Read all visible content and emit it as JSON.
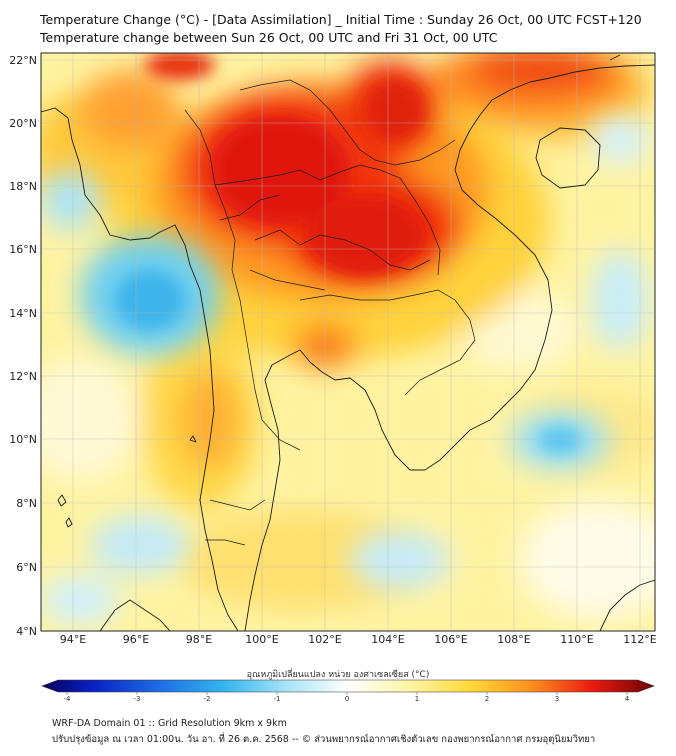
{
  "title": {
    "line1": "Temperature Change (°C) - [Data Assimilation] _ Initial Time : Sunday 26 Oct, 00 UTC FCST+120",
    "line2": "Temperature change between Sun 26 Oct, 00 UTC and Fri 31 Oct, 00 UTC"
  },
  "map": {
    "lat_labels": [
      "22°N",
      "20°N",
      "18°N",
      "16°N",
      "14°N",
      "12°N",
      "10°N",
      "8°N",
      "6°N",
      "4°N"
    ],
    "lon_labels": [
      "94°E",
      "96°E",
      "98°E",
      "100°E",
      "102°E",
      "104°E",
      "106°E",
      "108°E",
      "110°E",
      "112°E"
    ],
    "lat_range": [
      4,
      22.2
    ],
    "lon_range": [
      93,
      112.5
    ]
  },
  "colorbar": {
    "title": "อุณหภูมิเปลี่ยนแปลง หน่วย องศาเซลเซียส (°C)",
    "ticks": [
      "-4",
      "-3",
      "-2",
      "-1",
      "0",
      "1",
      "2",
      "3",
      "4"
    ],
    "range": [
      -4,
      4
    ]
  },
  "footer": {
    "line1": "WRF-DA Domain 01 :: Grid Resolution 9km x 9km",
    "line2": "ปรับปรุงข้อมูล ณ เวลา 01:00น. วัน อา. ที่ 26 ต.ค. 2568 -- © ส่วนพยากรณ์อากาศเชิงตัวเลข กองพยากรณ์อากาศ กรมอุตุนิยมวิทยา"
  }
}
